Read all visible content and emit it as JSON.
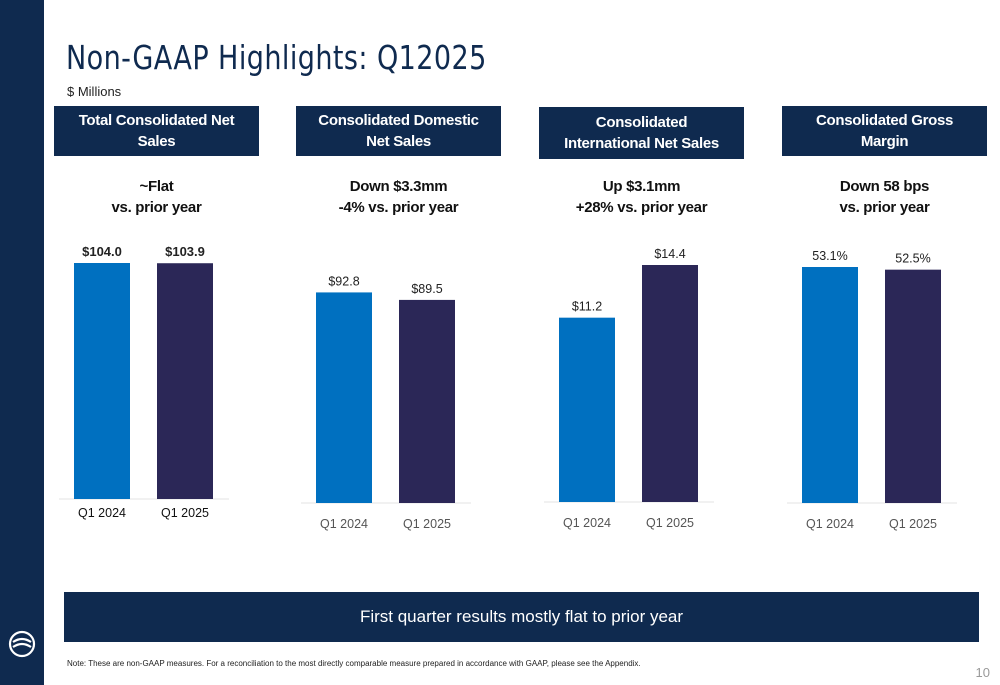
{
  "title": "Non-GAAP Highlights: Q12025",
  "units": "$ Millions",
  "banner": "First quarter results mostly flat to prior year",
  "note": "Note: These are non-GAAP measures. For a reconciliation to the most directly comparable measure prepared in accordance with GAAP, please see the Appendix.",
  "page_number": "10",
  "colors": {
    "navy": "#0f2a4f",
    "bar_2024": "#0070c0",
    "bar_2025": "#2b2757"
  },
  "panels": [
    {
      "header": [
        "Total Consolidated Net",
        "Sales"
      ],
      "summary": [
        "~Flat",
        "vs. prior year"
      ]
    },
    {
      "header": [
        "Consolidated Domestic",
        "Net Sales"
      ],
      "summary": [
        "Down $3.3mm",
        "-4% vs. prior year"
      ]
    },
    {
      "header": [
        "Consolidated",
        "International Net Sales"
      ],
      "summary": [
        "Up $3.1mm",
        "+28% vs. prior year"
      ]
    },
    {
      "header": [
        "Consolidated Gross",
        "Margin"
      ],
      "summary": [
        "Down 58 bps",
        "vs. prior year"
      ]
    }
  ],
  "chart_data": [
    {
      "type": "bar",
      "categories": [
        "Q1 2024",
        "Q1 2025"
      ],
      "values": [
        104.0,
        103.9
      ],
      "labels": [
        "$104.0",
        "$103.9"
      ],
      "ylim": [
        0,
        104.0
      ]
    },
    {
      "type": "bar",
      "categories": [
        "Q1 2024",
        "Q1 2025"
      ],
      "values": [
        92.8,
        89.5
      ],
      "labels": [
        "$92.8",
        "$89.5"
      ],
      "ylim": [
        0,
        104.0
      ]
    },
    {
      "type": "bar",
      "categories": [
        "Q1 2024",
        "Q1 2025"
      ],
      "values": [
        11.2,
        14.4
      ],
      "labels": [
        "$11.2",
        "$14.4"
      ],
      "ylim": [
        0,
        14.4
      ]
    },
    {
      "type": "bar",
      "categories": [
        "Q1 2024",
        "Q1 2025"
      ],
      "values": [
        53.1,
        52.5
      ],
      "labels": [
        "53.1%",
        "52.5%"
      ],
      "ylim": [
        0,
        53.1
      ]
    }
  ]
}
